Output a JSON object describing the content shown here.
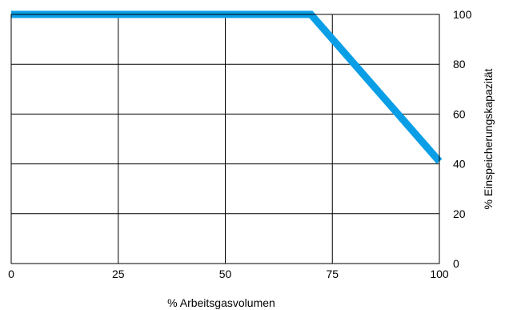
{
  "chart_data": {
    "type": "line",
    "title": "",
    "xlabel": "% Arbeitsgasvolumen",
    "ylabel": "% Einspeicherungskapazität",
    "xlim": [
      0,
      100
    ],
    "ylim": [
      0,
      100
    ],
    "x_ticks": [
      0,
      25,
      50,
      75,
      100
    ],
    "y_ticks": [
      0,
      20,
      40,
      60,
      80,
      100
    ],
    "y_axis_side": "right",
    "grid": true,
    "legend": "none",
    "series": [
      {
        "x": [
          0,
          70,
          100
        ],
        "y": [
          100,
          100,
          41
        ],
        "color": "#0a9ee6"
      }
    ]
  }
}
